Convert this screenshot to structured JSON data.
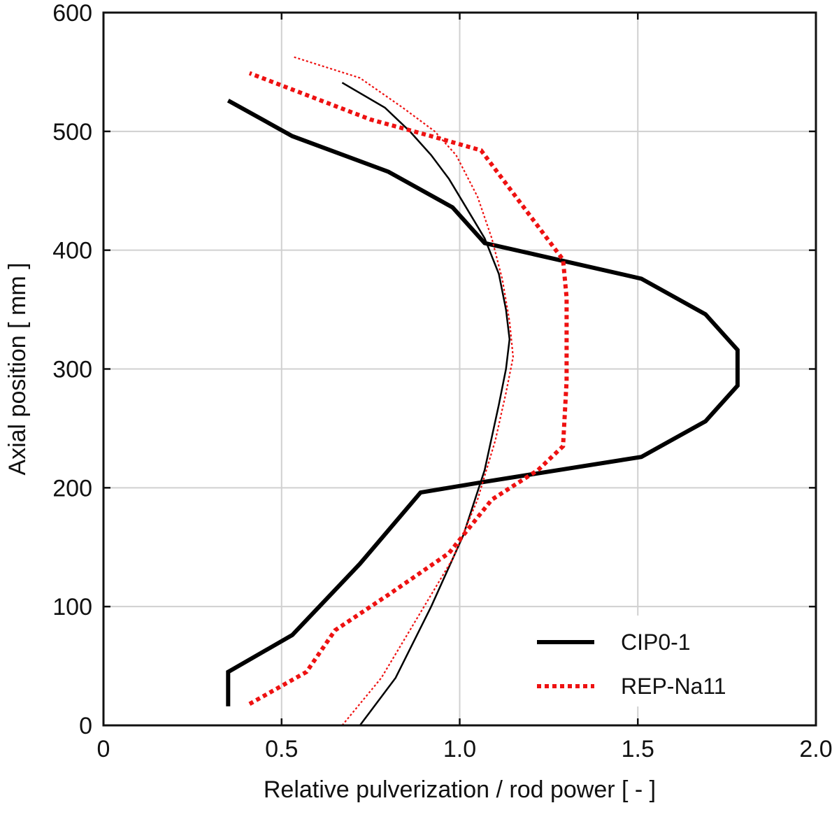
{
  "chart_data": {
    "type": "line",
    "title": "",
    "xlabel": "Relative pulverization / rod power [ - ]",
    "ylabel": "Axial position [ mm ]",
    "xlim": [
      0,
      2.0
    ],
    "ylim": [
      0,
      600
    ],
    "xticks": [
      0,
      0.5,
      1.0,
      1.5,
      2.0
    ],
    "xtick_labels": [
      "0",
      "0.5",
      "1.0",
      "1.5",
      "2.0"
    ],
    "yticks": [
      0,
      100,
      200,
      300,
      400,
      500,
      600
    ],
    "ytick_labels": [
      "0",
      "100",
      "200",
      "300",
      "400",
      "500",
      "600"
    ],
    "grid": true,
    "legend_position": "bottom-right",
    "colors": {
      "black": "#000000",
      "red": "#ee1111",
      "grid": "#d0d0d0"
    },
    "series": [
      {
        "name": "CIP0-1",
        "role": "relative pulverization",
        "color": "#000000",
        "style": "solid-thick",
        "in_legend": true,
        "x": [
          0.35,
          0.35,
          0.35,
          0.53,
          0.72,
          0.89,
          1.07,
          1.51,
          1.69,
          1.78,
          1.78,
          1.69,
          1.51,
          1.07,
          0.98,
          0.8,
          0.53,
          0.35
        ],
        "y": [
          16,
          30,
          45,
          76,
          136,
          196,
          205,
          226,
          256,
          286,
          316,
          346,
          376,
          406,
          436,
          466,
          496,
          526
        ]
      },
      {
        "name": "CIP0-1 rod power",
        "role": "rod power",
        "color": "#000000",
        "style": "solid-thin",
        "in_legend": false,
        "x": [
          0.72,
          0.82,
          0.92,
          1.01,
          1.07,
          1.11,
          1.13,
          1.14,
          1.13,
          1.11,
          1.07,
          1.02,
          0.97,
          0.92,
          0.86,
          0.79,
          0.67
        ],
        "y": [
          0,
          40,
          100,
          160,
          215,
          270,
          300,
          325,
          350,
          380,
          410,
          435,
          460,
          480,
          500,
          520,
          541
        ]
      },
      {
        "name": "REP-Na11",
        "role": "relative pulverization",
        "color": "#ee1111",
        "style": "dotted-thick",
        "in_legend": true,
        "x": [
          0.41,
          0.57,
          0.65,
          0.8,
          0.97,
          1.09,
          1.22,
          1.29,
          1.3,
          1.3,
          1.29,
          1.06,
          0.92,
          0.75,
          0.41
        ],
        "y": [
          18,
          45,
          80,
          110,
          145,
          190,
          215,
          235,
          290,
          360,
          392,
          484,
          496,
          510,
          549
        ]
      },
      {
        "name": "REP-Na11 rod power",
        "role": "rod power",
        "color": "#ee1111",
        "style": "dotted-thin",
        "in_legend": false,
        "x": [
          0.67,
          0.78,
          0.88,
          0.98,
          1.05,
          1.1,
          1.13,
          1.15,
          1.14,
          1.12,
          1.09,
          1.05,
          0.99,
          0.93,
          0.84,
          0.72,
          0.53
        ],
        "y": [
          0,
          40,
          90,
          140,
          190,
          240,
          280,
          310,
          340,
          375,
          410,
          445,
          480,
          500,
          520,
          545,
          563
        ]
      }
    ],
    "legend": [
      {
        "label": "CIP0-1",
        "color": "#000000",
        "style": "solid-thick"
      },
      {
        "label": "REP-Na11",
        "color": "#ee1111",
        "style": "dotted-thick"
      }
    ]
  }
}
